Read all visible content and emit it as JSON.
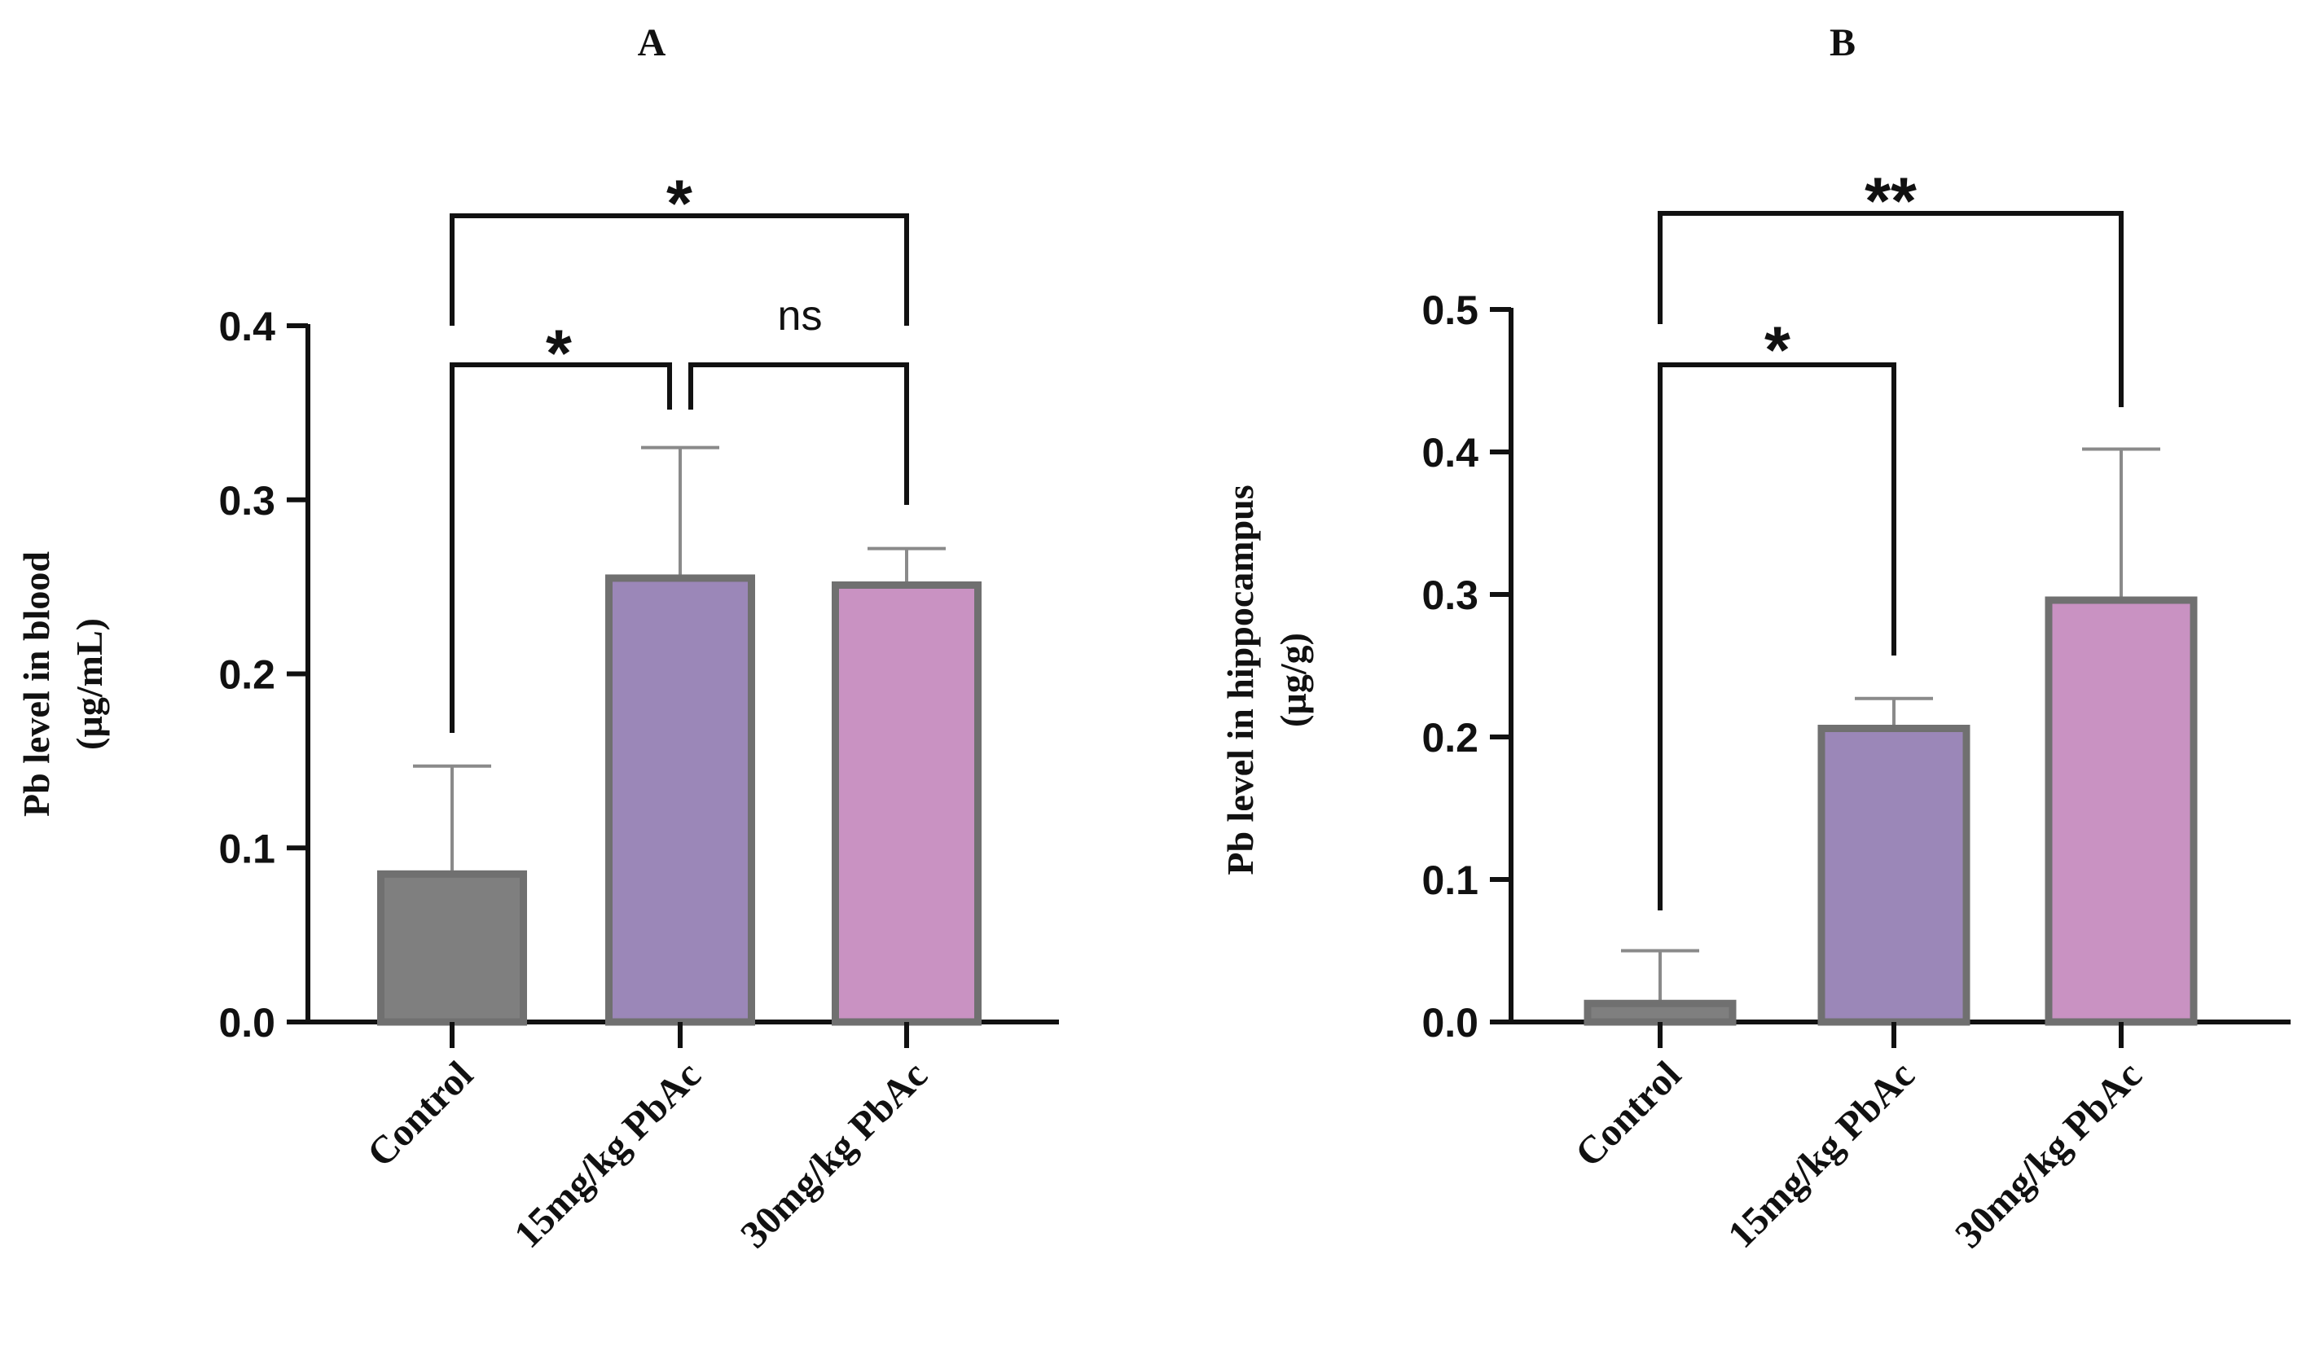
{
  "chart_data": [
    {
      "type": "bar",
      "panel": "A",
      "categories": [
        "Control",
        "15mg/kg PbAc",
        "30mg/kg PbAc"
      ],
      "values": [
        0.085,
        0.255,
        0.251
      ],
      "error": [
        0.062,
        0.075,
        0.021
      ],
      "colors": [
        "#7f7f7f",
        "#9b87b8",
        "#c992c2"
      ],
      "ylabel": [
        "Pb level in blood",
        "(µg/mL)"
      ],
      "ylim": [
        0,
        0.4
      ],
      "yticks": [
        0.0,
        0.1,
        0.2,
        0.3,
        0.4
      ],
      "ytick_labels": [
        "0.0",
        "0.1",
        "0.2",
        "0.3",
        "0.4"
      ],
      "comparisons": [
        {
          "from": 0,
          "to": 1,
          "label": "*"
        },
        {
          "from": 1,
          "to": 2,
          "label": "ns"
        },
        {
          "from": 0,
          "to": 2,
          "label": "*"
        }
      ]
    },
    {
      "type": "bar",
      "panel": "B",
      "categories": [
        "Control",
        "15mg/kg PbAc",
        "30mg/kg PbAc"
      ],
      "values": [
        0.013,
        0.206,
        0.296
      ],
      "error": [
        0.037,
        0.021,
        0.106
      ],
      "colors": [
        "#7f7f7f",
        "#9b87b8",
        "#c992c2"
      ],
      "ylabel": [
        "Pb level in hippocampus",
        "(µg/g)"
      ],
      "ylim": [
        0,
        0.5
      ],
      "yticks": [
        0.0,
        0.1,
        0.2,
        0.3,
        0.4,
        0.5
      ],
      "ytick_labels": [
        "0.0",
        "0.1",
        "0.2",
        "0.3",
        "0.4",
        "0.5"
      ],
      "comparisons": [
        {
          "from": 0,
          "to": 1,
          "label": "*"
        },
        {
          "from": 0,
          "to": 2,
          "label": "**"
        }
      ]
    }
  ]
}
